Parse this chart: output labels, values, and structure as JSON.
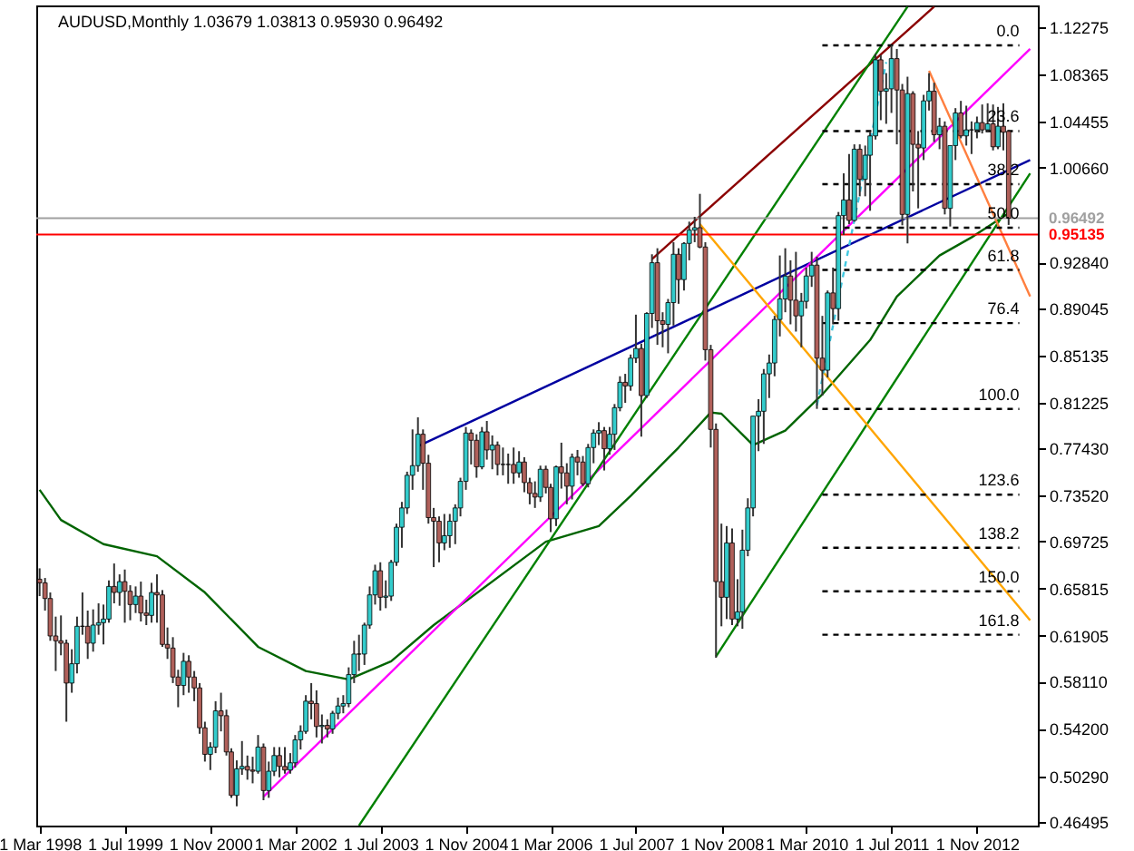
{
  "chart_data": {
    "type": "candlestick",
    "title": "AUDUSD,Monthly 1.03679 1.03813 0.95930 0.96492",
    "xlim": [
      "1998-02-10",
      "2013-10-15"
    ],
    "ylim": [
      0.462,
      1.141
    ],
    "xticks": [
      {
        "value": "1998-03-01",
        "label": "1 Mar 1998"
      },
      {
        "value": "1999-07-01",
        "label": "1 Jul 1999"
      },
      {
        "value": "2000-11-01",
        "label": "1 Nov 2000"
      },
      {
        "value": "2002-03-01",
        "label": "1 Mar 2002"
      },
      {
        "value": "2003-07-01",
        "label": "1 Jul 2003"
      },
      {
        "value": "2004-11-01",
        "label": "1 Nov 2004"
      },
      {
        "value": "2006-03-01",
        "label": "1 Mar 2006"
      },
      {
        "value": "2007-07-01",
        "label": "1 Jul 2007"
      },
      {
        "value": "2008-11-01",
        "label": "1 Nov 2008"
      },
      {
        "value": "2010-03-01",
        "label": "1 Mar 2010"
      },
      {
        "value": "2011-07-01",
        "label": "1 Jul 2011"
      },
      {
        "value": "2012-11-01",
        "label": "1 Nov 2012"
      }
    ],
    "yticks": [
      1.12275,
      1.08365,
      1.04455,
      {
        "value": 1.0066,
        "label": "1.00660"
      },
      {
        "value": 0.9284,
        "label": "0.92840"
      },
      0.89045,
      0.85135,
      0.81225,
      {
        "value": 0.7743,
        "label": "0.77430"
      },
      {
        "value": 0.7352,
        "label": "0.73520"
      },
      0.69725,
      0.65815,
      0.61905,
      {
        "value": 0.5811,
        "label": "0.58110"
      },
      {
        "value": 0.542,
        "label": "0.54200"
      },
      {
        "value": 0.5029,
        "label": "0.50290"
      },
      0.46495
    ],
    "x": [
      "1998-03",
      "1998-04",
      "1998-05",
      "1998-06",
      "1998-07",
      "1998-08",
      "1998-09",
      "1998-10",
      "1998-11",
      "1998-12",
      "1999-01",
      "1999-02",
      "1999-03",
      "1999-04",
      "1999-05",
      "1999-06",
      "1999-07",
      "1999-08",
      "1999-09",
      "1999-10",
      "1999-11",
      "1999-12",
      "2000-01",
      "2000-02",
      "2000-03",
      "2000-04",
      "2000-05",
      "2000-06",
      "2000-07",
      "2000-08",
      "2000-09",
      "2000-10",
      "2000-11",
      "2000-12",
      "2001-01",
      "2001-02",
      "2001-03",
      "2001-04",
      "2001-05",
      "2001-06",
      "2001-07",
      "2001-08",
      "2001-09",
      "2001-10",
      "2001-11",
      "2001-12",
      "2002-01",
      "2002-02",
      "2002-03",
      "2002-04",
      "2002-05",
      "2002-06",
      "2002-07",
      "2002-08",
      "2002-09",
      "2002-10",
      "2002-11",
      "2002-12",
      "2003-01",
      "2003-02",
      "2003-03",
      "2003-04",
      "2003-05",
      "2003-06",
      "2003-07",
      "2003-08",
      "2003-09",
      "2003-10",
      "2003-11",
      "2003-12",
      "2004-01",
      "2004-02",
      "2004-03",
      "2004-04",
      "2004-05",
      "2004-06",
      "2004-07",
      "2004-08",
      "2004-09",
      "2004-10",
      "2004-11",
      "2004-12",
      "2005-01",
      "2005-02",
      "2005-03",
      "2005-04",
      "2005-05",
      "2005-06",
      "2005-07",
      "2005-08",
      "2005-09",
      "2005-10",
      "2005-11",
      "2005-12",
      "2006-01",
      "2006-02",
      "2006-03",
      "2006-04",
      "2006-05",
      "2006-06",
      "2006-07",
      "2006-08",
      "2006-09",
      "2006-10",
      "2006-11",
      "2006-12",
      "2007-01",
      "2007-02",
      "2007-03",
      "2007-04",
      "2007-05",
      "2007-06",
      "2007-07",
      "2007-08",
      "2007-09",
      "2007-10",
      "2007-11",
      "2007-12",
      "2008-01",
      "2008-02",
      "2008-03",
      "2008-04",
      "2008-05",
      "2008-06",
      "2008-07",
      "2008-08",
      "2008-09",
      "2008-10",
      "2008-11",
      "2008-12",
      "2009-01",
      "2009-02",
      "2009-03",
      "2009-04",
      "2009-05",
      "2009-06",
      "2009-07",
      "2009-08",
      "2009-09",
      "2009-10",
      "2009-11",
      "2009-12",
      "2010-01",
      "2010-02",
      "2010-03",
      "2010-04",
      "2010-05",
      "2010-06",
      "2010-07",
      "2010-08",
      "2010-09",
      "2010-10",
      "2010-11",
      "2010-12",
      "2011-01",
      "2011-02",
      "2011-03",
      "2011-04",
      "2011-05",
      "2011-06",
      "2011-07",
      "2011-08",
      "2011-09",
      "2011-10",
      "2011-11",
      "2011-12",
      "2012-01",
      "2012-02",
      "2012-03",
      "2012-04",
      "2012-05",
      "2012-06",
      "2012-07",
      "2012-08",
      "2012-09",
      "2012-10",
      "2012-11",
      "2012-12",
      "2013-01",
      "2013-02",
      "2013-03",
      "2013-04",
      "2013-05"
    ],
    "ohlc": [
      [
        0.666,
        0.675,
        0.652,
        0.663
      ],
      [
        0.663,
        0.667,
        0.64,
        0.65
      ],
      [
        0.65,
        0.655,
        0.615,
        0.619
      ],
      [
        0.619,
        0.635,
        0.59,
        0.615
      ],
      [
        0.615,
        0.636,
        0.603,
        0.613
      ],
      [
        0.613,
        0.616,
        0.548,
        0.58
      ],
      [
        0.58,
        0.608,
        0.572,
        0.596
      ],
      [
        0.596,
        0.635,
        0.588,
        0.627
      ],
      [
        0.627,
        0.655,
        0.62,
        0.627
      ],
      [
        0.627,
        0.64,
        0.6,
        0.613
      ],
      [
        0.613,
        0.641,
        0.606,
        0.628
      ],
      [
        0.628,
        0.646,
        0.62,
        0.63
      ],
      [
        0.63,
        0.645,
        0.612,
        0.633
      ],
      [
        0.633,
        0.665,
        0.63,
        0.66
      ],
      [
        0.66,
        0.679,
        0.646,
        0.655
      ],
      [
        0.655,
        0.67,
        0.644,
        0.664
      ],
      [
        0.664,
        0.674,
        0.63,
        0.656
      ],
      [
        0.656,
        0.661,
        0.632,
        0.645
      ],
      [
        0.645,
        0.66,
        0.638,
        0.652
      ],
      [
        0.652,
        0.664,
        0.631,
        0.638
      ],
      [
        0.638,
        0.649,
        0.628,
        0.636
      ],
      [
        0.636,
        0.663,
        0.63,
        0.655
      ],
      [
        0.655,
        0.67,
        0.63,
        0.653
      ],
      [
        0.653,
        0.657,
        0.61,
        0.612
      ],
      [
        0.612,
        0.626,
        0.6,
        0.609
      ],
      [
        0.609,
        0.618,
        0.58,
        0.585
      ],
      [
        0.585,
        0.591,
        0.56,
        0.578
      ],
      [
        0.578,
        0.605,
        0.57,
        0.598
      ],
      [
        0.598,
        0.603,
        0.572,
        0.585
      ],
      [
        0.585,
        0.59,
        0.565,
        0.576
      ],
      [
        0.576,
        0.58,
        0.538,
        0.543
      ],
      [
        0.543,
        0.548,
        0.515,
        0.521
      ],
      [
        0.521,
        0.531,
        0.508,
        0.527
      ],
      [
        0.527,
        0.565,
        0.522,
        0.557
      ],
      [
        0.557,
        0.572,
        0.54,
        0.553
      ],
      [
        0.553,
        0.558,
        0.52,
        0.523
      ],
      [
        0.523,
        0.526,
        0.485,
        0.487
      ],
      [
        0.487,
        0.516,
        0.478,
        0.509
      ],
      [
        0.509,
        0.532,
        0.504,
        0.511
      ],
      [
        0.511,
        0.52,
        0.5,
        0.508
      ],
      [
        0.508,
        0.519,
        0.497,
        0.507
      ],
      [
        0.507,
        0.537,
        0.505,
        0.527
      ],
      [
        0.527,
        0.53,
        0.483,
        0.491
      ],
      [
        0.491,
        0.515,
        0.485,
        0.507
      ],
      [
        0.507,
        0.527,
        0.503,
        0.52
      ],
      [
        0.52,
        0.527,
        0.502,
        0.511
      ],
      [
        0.511,
        0.527,
        0.505,
        0.508
      ],
      [
        0.508,
        0.522,
        0.505,
        0.514
      ],
      [
        0.514,
        0.537,
        0.51,
        0.533
      ],
      [
        0.533,
        0.545,
        0.525,
        0.54
      ],
      [
        0.54,
        0.57,
        0.538,
        0.565
      ],
      [
        0.565,
        0.58,
        0.55,
        0.563
      ],
      [
        0.563,
        0.574,
        0.535,
        0.544
      ],
      [
        0.544,
        0.554,
        0.53,
        0.545
      ],
      [
        0.545,
        0.55,
        0.535,
        0.542
      ],
      [
        0.542,
        0.557,
        0.538,
        0.555
      ],
      [
        0.555,
        0.568,
        0.55,
        0.561
      ],
      [
        0.561,
        0.57,
        0.555,
        0.563
      ],
      [
        0.563,
        0.593,
        0.56,
        0.587
      ],
      [
        0.587,
        0.615,
        0.58,
        0.604
      ],
      [
        0.604,
        0.62,
        0.59,
        0.604
      ],
      [
        0.604,
        0.63,
        0.595,
        0.628
      ],
      [
        0.628,
        0.66,
        0.625,
        0.653
      ],
      [
        0.653,
        0.678,
        0.645,
        0.673
      ],
      [
        0.673,
        0.68,
        0.64,
        0.651
      ],
      [
        0.651,
        0.665,
        0.642,
        0.652
      ],
      [
        0.652,
        0.682,
        0.648,
        0.68
      ],
      [
        0.68,
        0.712,
        0.677,
        0.709
      ],
      [
        0.709,
        0.73,
        0.692,
        0.725
      ],
      [
        0.725,
        0.755,
        0.72,
        0.752
      ],
      [
        0.752,
        0.79,
        0.74,
        0.76
      ],
      [
        0.76,
        0.8,
        0.755,
        0.786
      ],
      [
        0.786,
        0.79,
        0.74,
        0.762
      ],
      [
        0.762,
        0.769,
        0.712,
        0.717
      ],
      [
        0.717,
        0.725,
        0.676,
        0.714
      ],
      [
        0.714,
        0.718,
        0.68,
        0.696
      ],
      [
        0.696,
        0.72,
        0.69,
        0.702
      ],
      [
        0.702,
        0.72,
        0.692,
        0.714
      ],
      [
        0.714,
        0.728,
        0.695,
        0.725
      ],
      [
        0.725,
        0.75,
        0.718,
        0.747
      ],
      [
        0.747,
        0.792,
        0.74,
        0.787
      ],
      [
        0.787,
        0.79,
        0.761,
        0.781
      ],
      [
        0.781,
        0.786,
        0.75,
        0.759
      ],
      [
        0.759,
        0.792,
        0.757,
        0.788
      ],
      [
        0.788,
        0.797,
        0.765,
        0.773
      ],
      [
        0.773,
        0.785,
        0.757,
        0.777
      ],
      [
        0.777,
        0.78,
        0.752,
        0.761
      ],
      [
        0.761,
        0.775,
        0.752,
        0.761
      ],
      [
        0.761,
        0.77,
        0.745,
        0.761
      ],
      [
        0.761,
        0.775,
        0.745,
        0.754
      ],
      [
        0.754,
        0.772,
        0.75,
        0.763
      ],
      [
        0.763,
        0.767,
        0.738,
        0.746
      ],
      [
        0.746,
        0.75,
        0.728,
        0.737
      ],
      [
        0.737,
        0.747,
        0.725,
        0.734
      ],
      [
        0.734,
        0.76,
        0.73,
        0.757
      ],
      [
        0.757,
        0.76,
        0.737,
        0.742
      ],
      [
        0.742,
        0.745,
        0.705,
        0.716
      ],
      [
        0.716,
        0.76,
        0.71,
        0.759
      ],
      [
        0.759,
        0.779,
        0.741,
        0.754
      ],
      [
        0.754,
        0.762,
        0.728,
        0.743
      ],
      [
        0.743,
        0.77,
        0.732,
        0.767
      ],
      [
        0.767,
        0.773,
        0.752,
        0.763
      ],
      [
        0.763,
        0.768,
        0.743,
        0.745
      ],
      [
        0.745,
        0.778,
        0.742,
        0.775
      ],
      [
        0.775,
        0.79,
        0.762,
        0.787
      ],
      [
        0.787,
        0.796,
        0.777,
        0.789
      ],
      [
        0.789,
        0.792,
        0.756,
        0.774
      ],
      [
        0.774,
        0.792,
        0.769,
        0.786
      ],
      [
        0.786,
        0.811,
        0.773,
        0.808
      ],
      [
        0.808,
        0.834,
        0.805,
        0.829
      ],
      [
        0.829,
        0.836,
        0.812,
        0.826
      ],
      [
        0.826,
        0.852,
        0.822,
        0.849
      ],
      [
        0.849,
        0.885,
        0.845,
        0.857
      ],
      [
        0.857,
        0.861,
        0.784,
        0.818
      ],
      [
        0.818,
        0.887,
        0.816,
        0.886
      ],
      [
        0.886,
        0.935,
        0.874,
        0.928
      ],
      [
        0.928,
        0.94,
        0.86,
        0.88
      ],
      [
        0.88,
        0.887,
        0.858,
        0.877
      ],
      [
        0.877,
        0.898,
        0.853,
        0.895
      ],
      [
        0.895,
        0.945,
        0.876,
        0.935
      ],
      [
        0.935,
        0.94,
        0.894,
        0.914
      ],
      [
        0.914,
        0.945,
        0.905,
        0.944
      ],
      [
        0.944,
        0.962,
        0.93,
        0.955
      ],
      [
        0.955,
        0.966,
        0.945,
        0.957
      ],
      [
        0.957,
        0.985,
        0.94,
        0.941
      ],
      [
        0.941,
        0.945,
        0.847,
        0.856
      ],
      [
        0.856,
        0.86,
        0.775,
        0.79
      ],
      [
        0.79,
        0.795,
        0.601,
        0.664
      ],
      [
        0.664,
        0.712,
        0.627,
        0.651
      ],
      [
        0.651,
        0.71,
        0.633,
        0.696
      ],
      [
        0.696,
        0.708,
        0.628,
        0.633
      ],
      [
        0.633,
        0.666,
        0.627,
        0.639
      ],
      [
        0.639,
        0.707,
        0.625,
        0.69
      ],
      [
        0.69,
        0.733,
        0.685,
        0.725
      ],
      [
        0.725,
        0.801,
        0.718,
        0.801
      ],
      [
        0.801,
        0.815,
        0.772,
        0.805
      ],
      [
        0.805,
        0.84,
        0.778,
        0.836
      ],
      [
        0.836,
        0.852,
        0.816,
        0.845
      ],
      [
        0.845,
        0.884,
        0.834,
        0.881
      ],
      [
        0.881,
        0.934,
        0.867,
        0.898
      ],
      [
        0.898,
        0.94,
        0.887,
        0.917
      ],
      [
        0.917,
        0.93,
        0.877,
        0.897
      ],
      [
        0.897,
        0.937,
        0.871,
        0.884
      ],
      [
        0.884,
        0.903,
        0.858,
        0.896
      ],
      [
        0.896,
        0.924,
        0.89,
        0.917
      ],
      [
        0.917,
        0.937,
        0.908,
        0.926
      ],
      [
        0.926,
        0.933,
        0.807,
        0.849
      ],
      [
        0.849,
        0.884,
        0.818,
        0.839
      ],
      [
        0.839,
        0.905,
        0.833,
        0.903
      ],
      [
        0.903,
        0.924,
        0.877,
        0.89
      ],
      [
        0.89,
        0.97,
        0.88,
        0.967
      ],
      [
        0.967,
        1.002,
        0.951,
        0.98
      ],
      [
        0.98,
        1.018,
        0.96,
        0.963
      ],
      [
        0.963,
        1.026,
        0.962,
        1.022
      ],
      [
        1.022,
        1.026,
        0.983,
        0.997
      ],
      [
        0.997,
        1.025,
        0.983,
        1.017
      ],
      [
        1.017,
        1.036,
        0.971,
        1.033
      ],
      [
        1.033,
        1.101,
        1.03,
        1.096
      ],
      [
        1.096,
        1.1,
        1.046,
        1.07
      ],
      [
        1.07,
        1.085,
        1.043,
        1.072
      ],
      [
        1.072,
        1.108,
        1.052,
        1.097
      ],
      [
        1.097,
        1.105,
        1.026,
        1.071
      ],
      [
        1.071,
        1.076,
        0.959,
        0.968
      ],
      [
        0.968,
        1.082,
        0.944,
        1.068
      ],
      [
        1.068,
        1.07,
        0.987,
        1.026
      ],
      [
        1.026,
        1.037,
        0.973,
        1.023
      ],
      [
        1.023,
        1.067,
        1.013,
        1.062
      ],
      [
        1.062,
        1.085,
        1.054,
        1.07
      ],
      [
        1.07,
        1.077,
        1.028,
        1.034
      ],
      [
        1.034,
        1.048,
        1.022,
        1.041
      ],
      [
        1.041,
        1.045,
        0.968,
        0.973
      ],
      [
        0.973,
        1.025,
        0.958,
        1.025
      ],
      [
        1.025,
        1.056,
        1.013,
        1.052
      ],
      [
        1.052,
        1.062,
        1.031,
        1.033
      ],
      [
        1.033,
        1.058,
        1.025,
        1.038
      ],
      [
        1.038,
        1.045,
        1.018,
        1.038
      ],
      [
        1.038,
        1.049,
        1.031,
        1.044
      ],
      [
        1.044,
        1.059,
        1.035,
        1.038
      ],
      [
        1.038,
        1.06,
        1.036,
        1.043
      ],
      [
        1.043,
        1.059,
        1.021,
        1.024
      ],
      [
        1.024,
        1.057,
        1.022,
        1.041
      ],
      [
        1.041,
        1.06,
        1.021,
        1.036
      ],
      [
        1.03679,
        1.03813,
        0.9593,
        0.96492
      ]
    ],
    "series": [
      {
        "type": "line",
        "color": "#006400",
        "x": [
          "1998-03",
          "1998-07",
          "1999-03",
          "2000-01",
          "2000-10",
          "2001-08",
          "2002-05",
          "2003-01",
          "2003-09",
          "2004-05",
          "2006-02",
          "2006-12",
          "2007-06",
          "2008-03",
          "2008-09",
          "2008-11",
          "2009-05",
          "2009-11",
          "2010-06",
          "2011-03",
          "2011-08",
          "2012-04",
          "2012-10",
          "2013-05"
        ],
        "values": [
          0.74,
          0.715,
          0.695,
          0.685,
          0.655,
          0.61,
          0.59,
          0.583,
          0.598,
          0.628,
          0.697,
          0.71,
          0.735,
          0.775,
          0.804,
          0.803,
          0.777,
          0.789,
          0.819,
          0.864,
          0.9,
          0.934,
          0.949,
          0.969
        ]
      },
      {
        "type": "line",
        "color": "#8b0000",
        "x": [
          "2007-10",
          "2012-03"
        ],
        "values": [
          0.931,
          1.14
        ]
      },
      {
        "type": "line",
        "color": "#0000a0",
        "x": [
          "2004-02",
          "2013-09"
        ],
        "values": [
          0.776,
          1.013
        ]
      },
      {
        "type": "line",
        "color": "#ff00ff",
        "x": [
          "2001-09",
          "2013-09"
        ],
        "values": [
          0.486,
          1.105
        ]
      },
      {
        "type": "line",
        "color": "#008000",
        "x": [
          "2003-03",
          "2011-10"
        ],
        "values": [
          0.462,
          1.14
        ]
      },
      {
        "type": "line",
        "color": "#008000",
        "x": [
          "2008-10",
          "2013-09"
        ],
        "values": [
          0.602,
          1.002
        ]
      },
      {
        "type": "line",
        "color": "#ffa500",
        "x": [
          "2008-07",
          "2013-09"
        ],
        "values": [
          0.96,
          0.632
        ]
      },
      {
        "type": "line",
        "color": "#ff7f3f",
        "x": [
          "2012-02",
          "2013-09"
        ],
        "values": [
          1.087,
          0.9
        ]
      },
      {
        "type": "line",
        "color": "#40c8e0",
        "line_style": "dashed",
        "x": [
          "2010-05",
          "2011-06"
        ],
        "values": [
          0.81,
          1.094
        ]
      },
      {
        "type": "line",
        "color": "#000000",
        "line_style": "dashed",
        "x": [
          "2010-06",
          "2013-07"
        ],
        "values": [
          1.108,
          1.108
        ]
      },
      {
        "type": "line",
        "color": "#000000",
        "line_style": "dashed",
        "x": [
          "2010-06",
          "2013-07"
        ],
        "values": [
          1.037,
          1.037
        ]
      },
      {
        "type": "line",
        "color": "#000000",
        "line_style": "dashed",
        "x": [
          "2010-06",
          "2013-07"
        ],
        "values": [
          0.993,
          0.993
        ]
      },
      {
        "type": "line",
        "color": "#000000",
        "line_style": "dashed",
        "x": [
          "2010-06",
          "2013-07"
        ],
        "values": [
          0.957,
          0.957
        ]
      },
      {
        "type": "line",
        "color": "#000000",
        "line_style": "dashed",
        "x": [
          "2010-06",
          "2013-07"
        ],
        "values": [
          0.922,
          0.922
        ]
      },
      {
        "type": "line",
        "color": "#000000",
        "line_style": "dashed",
        "x": [
          "2010-06",
          "2013-07"
        ],
        "values": [
          0.878,
          0.878
        ]
      },
      {
        "type": "line",
        "color": "#000000",
        "line_style": "dashed",
        "x": [
          "2010-06",
          "2013-07"
        ],
        "values": [
          0.807,
          0.807
        ]
      },
      {
        "type": "line",
        "color": "#000000",
        "line_style": "dashed",
        "x": [
          "2010-06",
          "2013-07"
        ],
        "values": [
          0.736,
          0.736
        ]
      },
      {
        "type": "line",
        "color": "#000000",
        "line_style": "dashed",
        "x": [
          "2010-06",
          "2013-07"
        ],
        "values": [
          0.692,
          0.692
        ]
      },
      {
        "type": "line",
        "color": "#000000",
        "line_style": "dashed",
        "x": [
          "2010-06",
          "2013-07"
        ],
        "values": [
          0.656,
          0.656
        ]
      },
      {
        "type": "line",
        "color": "#000000",
        "line_style": "dashed",
        "x": [
          "2010-06",
          "2013-07"
        ],
        "values": [
          0.62,
          0.62
        ]
      }
    ],
    "annotations": [
      {
        "text": "0.0",
        "x": "2013-07",
        "y": 1.108
      },
      {
        "text": "23.6",
        "x": "2013-07",
        "y": 1.037
      },
      {
        "text": "38.2",
        "x": "2013-07",
        "y": 0.993
      },
      {
        "text": "50.0",
        "x": "2013-07",
        "y": 0.957
      },
      {
        "text": "61.8",
        "x": "2013-07",
        "y": 0.922
      },
      {
        "text": "76.4",
        "x": "2013-07",
        "y": 0.878
      },
      {
        "text": "100.0",
        "x": "2013-07",
        "y": 0.807
      },
      {
        "text": "123.6",
        "x": "2013-07",
        "y": 0.736
      },
      {
        "text": "138.2",
        "x": "2013-07",
        "y": 0.692
      },
      {
        "text": "150.0",
        "x": "2013-07",
        "y": 0.656
      },
      {
        "text": "161.8",
        "x": "2013-07",
        "y": 0.62
      }
    ],
    "ref_lines": [
      {
        "axis": "y",
        "value": 0.96492,
        "label": "0.96492",
        "color": "#a0a0a0"
      },
      {
        "axis": "y",
        "value": 0.95135,
        "label": "0.95135",
        "color": "#ff0000"
      }
    ]
  }
}
